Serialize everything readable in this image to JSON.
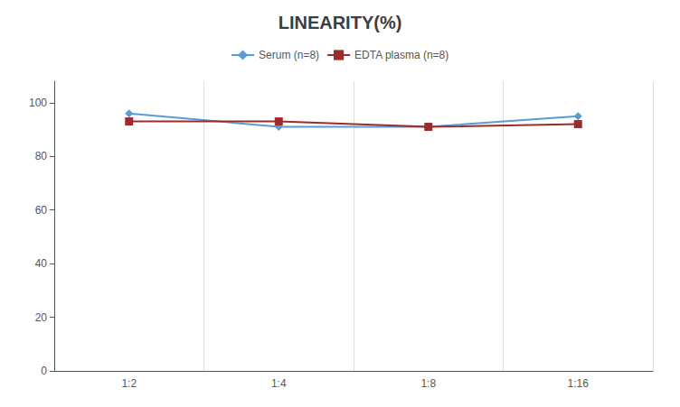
{
  "chart_data": {
    "type": "line",
    "title": "LINEARITY(%)",
    "categories": [
      "1:2",
      "1:4",
      "1:8",
      "1:16"
    ],
    "series": [
      {
        "name": "Serum (n=8)",
        "color": "#5b9bd5",
        "marker": "diamond",
        "values": [
          96,
          91,
          91,
          95
        ]
      },
      {
        "name": "EDTA plasma (n=8)",
        "color": "#9e2a2b",
        "marker": "square",
        "values": [
          93,
          93,
          91,
          92
        ]
      }
    ],
    "ylim": [
      0,
      108
    ],
    "yticks": [
      0,
      20,
      40,
      60,
      80,
      100
    ],
    "grid": "x",
    "legend": "top"
  }
}
